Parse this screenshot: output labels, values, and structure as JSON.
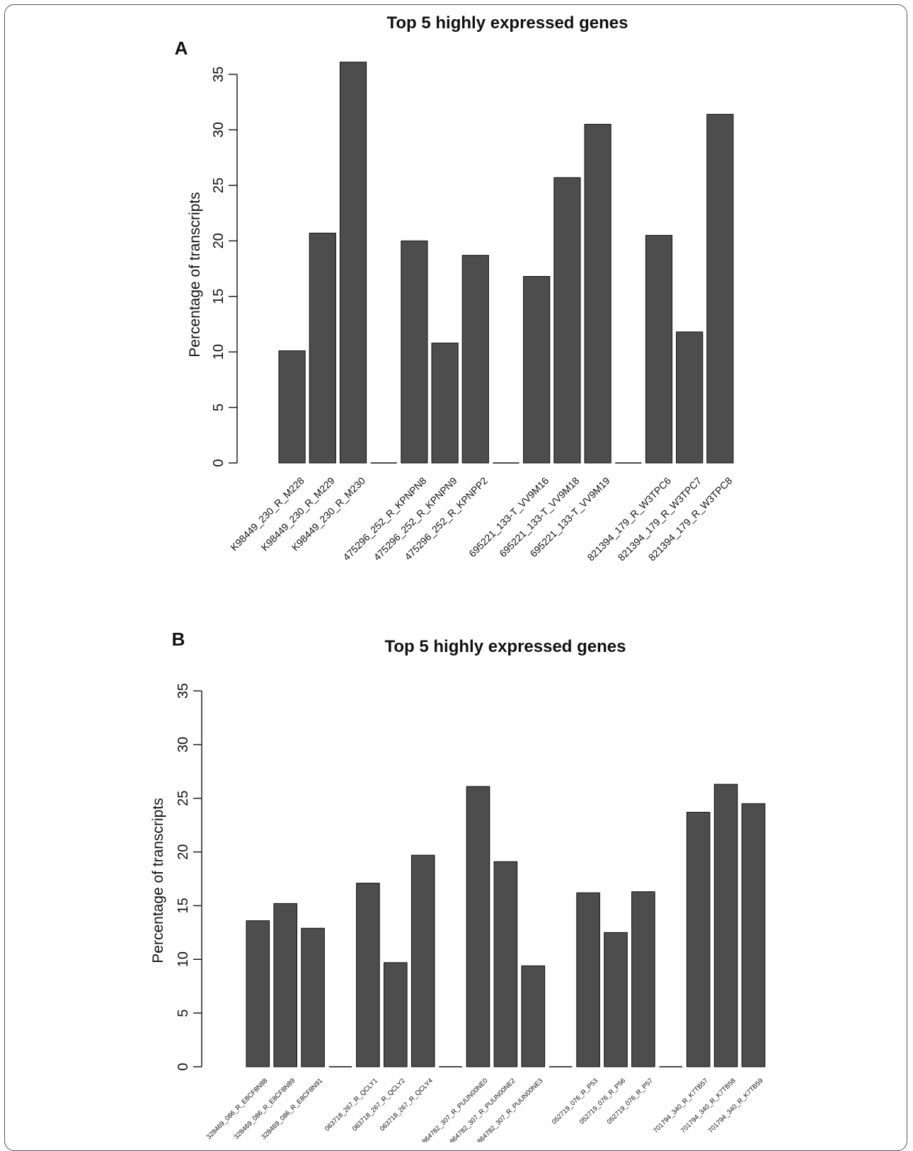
{
  "chart_data": [
    {
      "panel": "A",
      "type": "bar",
      "title": "Top 5 highly expressed genes",
      "ylabel": "Percentage of transcripts",
      "xlabel": "",
      "ylim": [
        0,
        35
      ],
      "yticks": [
        0,
        5,
        10,
        15,
        20,
        25,
        30,
        35
      ],
      "color": "#4d4d4d",
      "categories": [
        "K98449_230_R_M228",
        "K98449_230_R_M229",
        "K98449_230_R_M230",
        "",
        "475296_252_R_KPNPN8",
        "475296_252_R_KPNPN9",
        "475296_252_R_KPNPP2",
        "",
        "695221_133-T_VV9M16",
        "695221_133-T_VV9M18",
        "695221_133-T_VV9M19",
        "",
        "821394_179_R_W3TPC6",
        "821394_179_R_W3TPC7",
        "821394_179_R_W3TPC8"
      ],
      "values": [
        10.1,
        20.7,
        36.1,
        0,
        20.0,
        10.8,
        18.7,
        0,
        16.8,
        25.7,
        30.5,
        0,
        20.5,
        11.8,
        31.4
      ]
    },
    {
      "panel": "B",
      "type": "bar",
      "title": "Top 5 highly expressed genes",
      "ylabel": "Percentage of transcripts",
      "xlabel": "",
      "ylim": [
        0,
        35
      ],
      "yticks": [
        0,
        5,
        10,
        15,
        20,
        25,
        30,
        35
      ],
      "color": "#4d4d4d",
      "categories": [
        "328469_086_R_E8CF8N88",
        "328469_086_R_E8CF8N89",
        "328469_086_R_E8CF8N91",
        "",
        "063718_267_R_QCLY1",
        "063718_267_R_QCLY2",
        "063718_267_R_QCLY4",
        "",
        "864782_307_R_PUUN00NE0",
        "864782_307_R_PUUN00NE2",
        "864782_307_R_PUUN00NE3",
        "",
        "052719_076_R_P53",
        "052719_076_R_P56",
        "052719_076_R_P57",
        "",
        "701794_340_R_K7TB57",
        "701794_340_R_K7TB58",
        "701794_340_R_K7TB59"
      ],
      "values": [
        13.6,
        15.2,
        12.9,
        0,
        17.1,
        9.7,
        19.7,
        0,
        26.1,
        19.1,
        9.4,
        0,
        16.2,
        12.5,
        16.3,
        0,
        23.7,
        26.3,
        24.5
      ]
    }
  ]
}
